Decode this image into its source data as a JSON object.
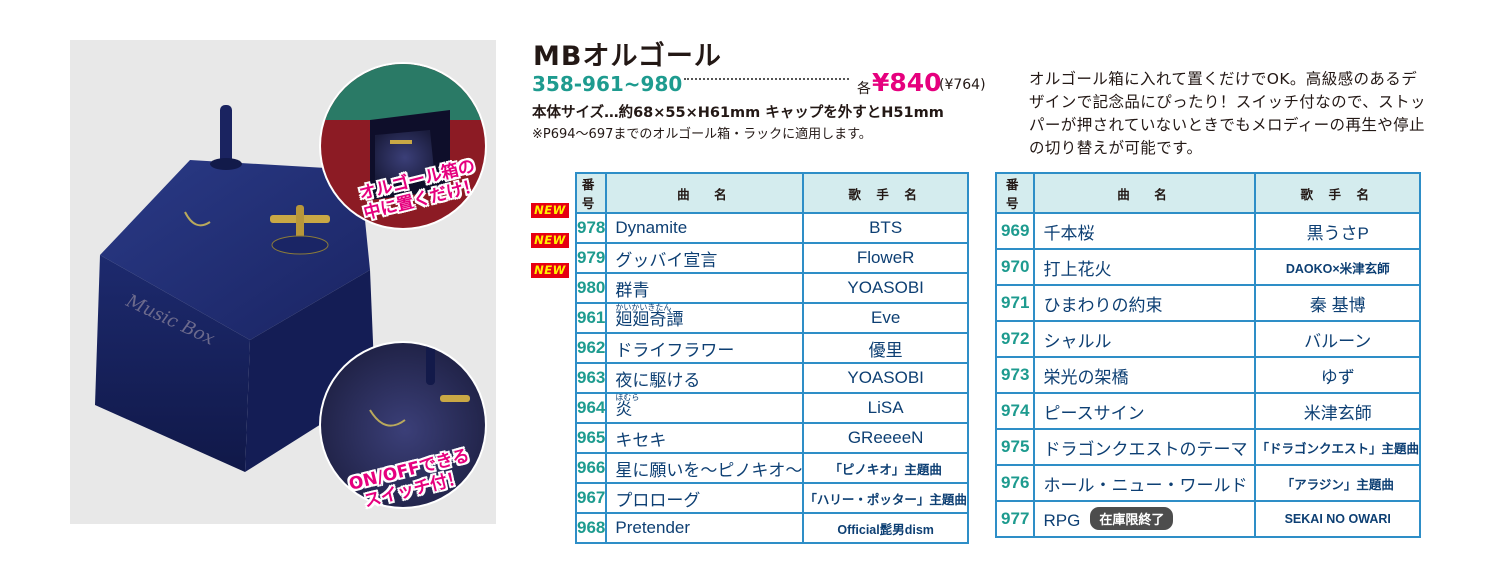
{
  "product": {
    "title": "MBオルゴール",
    "code": "358-961~980",
    "price_prefix": "各",
    "price": "¥840",
    "price_tax": "(¥764)",
    "size": "本体サイズ…約68×55×H61mm キャップを外すとH51mm",
    "note": "※P694～697までのオルゴール箱・ラックに適用します。",
    "description": "オルゴール箱に入れて置くだけでOK。高級感のあるデザインで記念品にぴったり！スイッチ付なので、ストッパーが押されていないときでもメロディーの再生や停止の切り替えが可能です。"
  },
  "photo": {
    "callout_top_line1": "オルゴール箱の",
    "callout_top_line2": "中に置くだけ！",
    "callout_bottom_line1": "ON/OFFできる",
    "callout_bottom_line2": "スイッチ付！",
    "embossed_text": "Music Box"
  },
  "table_headers": {
    "number": "番号",
    "song": "曲　名",
    "artist": "歌 手 名"
  },
  "new_badge": "NEW",
  "stock_badge": "在庫限終了",
  "left_rows": [
    {
      "num": "978",
      "song": "Dynamite",
      "artist": "BTS",
      "new": true
    },
    {
      "num": "979",
      "song": "グッバイ宣言",
      "artist": "FloweR",
      "new": true
    },
    {
      "num": "980",
      "song": "群青",
      "artist": "YOASOBI",
      "new": true
    },
    {
      "num": "961",
      "song": "廻廻奇譚",
      "ruby": "かいかいきたん",
      "artist": "Eve"
    },
    {
      "num": "962",
      "song": "ドライフラワー",
      "artist": "優里"
    },
    {
      "num": "963",
      "song": "夜に駆ける",
      "artist": "YOASOBI"
    },
    {
      "num": "964",
      "song": "炎",
      "ruby": "ほむら",
      "artist": "LiSA"
    },
    {
      "num": "965",
      "song": "キセキ",
      "artist": "GReeeeN"
    },
    {
      "num": "966",
      "song": "星に願いを～ピノキオ～",
      "artist": "「ピノキオ」主題曲",
      "small": true
    },
    {
      "num": "967",
      "song": "プロローグ",
      "artist": "「ハリー・ポッター」主題曲",
      "small": true
    },
    {
      "num": "968",
      "song": "Pretender",
      "artist": "Official髭男dism",
      "small": true
    }
  ],
  "right_rows": [
    {
      "num": "969",
      "song": "千本桜",
      "artist": "黒うさP"
    },
    {
      "num": "970",
      "song": "打上花火",
      "artist": "DAOKO×米津玄師",
      "small": true
    },
    {
      "num": "971",
      "song": "ひまわりの約束",
      "artist": "秦 基博"
    },
    {
      "num": "972",
      "song": "シャルル",
      "artist": "バルーン"
    },
    {
      "num": "973",
      "song": "栄光の架橋",
      "artist": "ゆず"
    },
    {
      "num": "974",
      "song": "ピースサイン",
      "artist": "米津玄師"
    },
    {
      "num": "975",
      "song": "ドラゴンクエストのテーマ",
      "artist": "「ドラゴンクエスト」主題曲",
      "small": true
    },
    {
      "num": "976",
      "song": "ホール・ニュー・ワールド",
      "artist": "「アラジン」主題曲",
      "small": true
    },
    {
      "num": "977",
      "song": "RPG",
      "artist": "SEKAI NO OWARI",
      "small": true,
      "stock_end": true
    }
  ],
  "colors": {
    "accent_teal": "#1e9b8f",
    "price_pink": "#e6007e",
    "table_border": "#2e8ec7",
    "header_bg": "#d4ecee",
    "new_red": "#e60012"
  }
}
